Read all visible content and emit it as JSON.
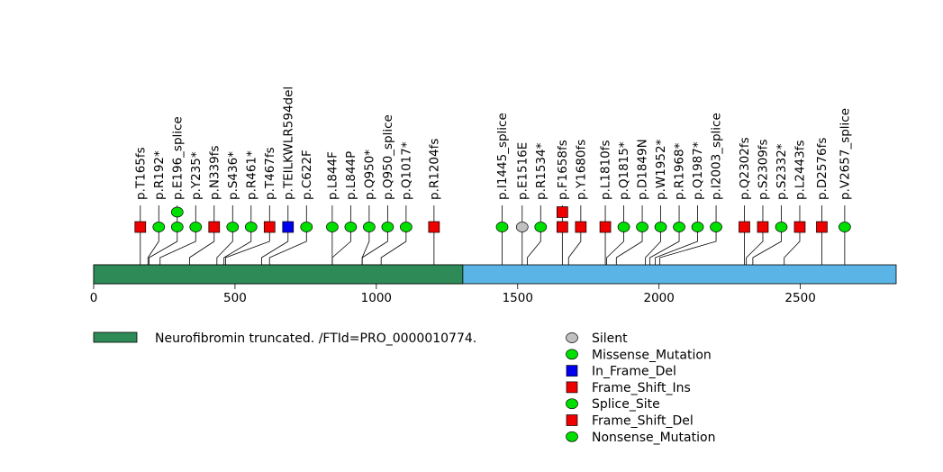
{
  "chart_data": {
    "type": "lollipop",
    "title": "",
    "xlabel": "",
    "ylabel": "",
    "xlim": [
      0,
      2839
    ],
    "xticks": [
      0,
      500,
      1000,
      1500,
      2000,
      2500
    ],
    "protein_length": 2839,
    "colors": {
      "domain": "#2e8b57",
      "backbone": "#5ab4e5",
      "Silent": "#c0c0c0",
      "Missense_Mutation": "#00e000",
      "In_Frame_Del": "#0000ee",
      "Frame_Shift_Ins": "#ee0000",
      "Splice_Site": "#00e000",
      "Frame_Shift_Del": "#ee0000",
      "Nonsense_Mutation": "#00e000"
    },
    "domains": [
      {
        "name": "Neurofibromin truncated. /FTId=PRO_0000010774.",
        "start": 1,
        "end": 1306
      }
    ],
    "mutations": [
      {
        "label": "p.T165fs",
        "pos": 165,
        "stack": [
          {
            "type": "Frame_Shift_Del",
            "count": 1
          }
        ]
      },
      {
        "label": "p.R192*",
        "pos": 192,
        "stack": [
          {
            "type": "Nonsense_Mutation",
            "count": 1
          }
        ]
      },
      {
        "label": "p.E196_splice",
        "pos": 196,
        "stack": [
          {
            "type": "Splice_Site",
            "count": 2
          }
        ]
      },
      {
        "label": "p.Y235*",
        "pos": 235,
        "stack": [
          {
            "type": "Nonsense_Mutation",
            "count": 1
          }
        ]
      },
      {
        "label": "p.N339fs",
        "pos": 339,
        "stack": [
          {
            "type": "Frame_Shift_Ins",
            "count": 1
          }
        ]
      },
      {
        "label": "p.S436*",
        "pos": 436,
        "stack": [
          {
            "type": "Nonsense_Mutation",
            "count": 1
          }
        ]
      },
      {
        "label": "p.R461*",
        "pos": 461,
        "stack": [
          {
            "type": "Nonsense_Mutation",
            "count": 1
          }
        ]
      },
      {
        "label": "p.T467fs",
        "pos": 467,
        "stack": [
          {
            "type": "Frame_Shift_Del",
            "count": 1
          }
        ]
      },
      {
        "label": "p.TEILKWLR594del",
        "pos": 594,
        "stack": [
          {
            "type": "In_Frame_Del",
            "count": 1
          }
        ]
      },
      {
        "label": "p.C622F",
        "pos": 622,
        "stack": [
          {
            "type": "Missense_Mutation",
            "count": 1
          }
        ]
      },
      {
        "label": "p.L844F",
        "pos": 844,
        "stack": [
          {
            "type": "Missense_Mutation",
            "count": 1
          }
        ]
      },
      {
        "label": "p.L844P",
        "pos": 844,
        "stack": [
          {
            "type": "Missense_Mutation",
            "count": 1
          }
        ]
      },
      {
        "label": "p.Q950*",
        "pos": 950,
        "stack": [
          {
            "type": "Nonsense_Mutation",
            "count": 1
          }
        ]
      },
      {
        "label": "p.Q950_splice",
        "pos": 950,
        "stack": [
          {
            "type": "Splice_Site",
            "count": 1
          }
        ]
      },
      {
        "label": "p.Q1017*",
        "pos": 1017,
        "stack": [
          {
            "type": "Nonsense_Mutation",
            "count": 1
          }
        ]
      },
      {
        "label": "p.R1204fs",
        "pos": 1204,
        "stack": [
          {
            "type": "Frame_Shift_Del",
            "count": 1
          }
        ]
      },
      {
        "label": "p.I1445_splice",
        "pos": 1445,
        "stack": [
          {
            "type": "Splice_Site",
            "count": 1
          }
        ]
      },
      {
        "label": "p.E1516E",
        "pos": 1516,
        "stack": [
          {
            "type": "Silent",
            "count": 1
          }
        ]
      },
      {
        "label": "p.R1534*",
        "pos": 1534,
        "stack": [
          {
            "type": "Nonsense_Mutation",
            "count": 1
          }
        ]
      },
      {
        "label": "p.F1658fs",
        "pos": 1658,
        "stack": [
          {
            "type": "Frame_Shift_Ins",
            "count": 2
          }
        ]
      },
      {
        "label": "p.Y1680fs",
        "pos": 1680,
        "stack": [
          {
            "type": "Frame_Shift_Del",
            "count": 1
          }
        ]
      },
      {
        "label": "p.L1810fs",
        "pos": 1810,
        "stack": [
          {
            "type": "Frame_Shift_Del",
            "count": 1
          }
        ]
      },
      {
        "label": "p.Q1815*",
        "pos": 1815,
        "stack": [
          {
            "type": "Nonsense_Mutation",
            "count": 1
          }
        ]
      },
      {
        "label": "p.D1849N",
        "pos": 1849,
        "stack": [
          {
            "type": "Missense_Mutation",
            "count": 1
          }
        ]
      },
      {
        "label": "p.W1952*",
        "pos": 1952,
        "stack": [
          {
            "type": "Nonsense_Mutation",
            "count": 1
          }
        ]
      },
      {
        "label": "p.R1968*",
        "pos": 1968,
        "stack": [
          {
            "type": "Nonsense_Mutation",
            "count": 1
          }
        ]
      },
      {
        "label": "p.Q1987*",
        "pos": 1987,
        "stack": [
          {
            "type": "Nonsense_Mutation",
            "count": 1
          }
        ]
      },
      {
        "label": "p.I2003_splice",
        "pos": 2003,
        "stack": [
          {
            "type": "Splice_Site",
            "count": 1
          }
        ]
      },
      {
        "label": "p.Q2302fs",
        "pos": 2302,
        "stack": [
          {
            "type": "Frame_Shift_Del",
            "count": 1
          }
        ]
      },
      {
        "label": "p.S2309fs",
        "pos": 2309,
        "stack": [
          {
            "type": "Frame_Shift_Del",
            "count": 1
          }
        ]
      },
      {
        "label": "p.S2332*",
        "pos": 2332,
        "stack": [
          {
            "type": "Nonsense_Mutation",
            "count": 1
          }
        ]
      },
      {
        "label": "p.L2443fs",
        "pos": 2443,
        "stack": [
          {
            "type": "Frame_Shift_Del",
            "count": 1
          }
        ]
      },
      {
        "label": "p.D2576fs",
        "pos": 2576,
        "stack": [
          {
            "type": "Frame_Shift_Del",
            "count": 1
          }
        ]
      },
      {
        "label": "p.V2657_splice",
        "pos": 2657,
        "stack": [
          {
            "type": "Splice_Site",
            "count": 1
          }
        ]
      }
    ],
    "legend": {
      "domain_entries": [
        "Neurofibromin truncated. /FTId=PRO_0000010774."
      ],
      "type_entries": [
        {
          "name": "Silent",
          "shape": "circle"
        },
        {
          "name": "Missense_Mutation",
          "shape": "circle"
        },
        {
          "name": "In_Frame_Del",
          "shape": "square"
        },
        {
          "name": "Frame_Shift_Ins",
          "shape": "square"
        },
        {
          "name": "Splice_Site",
          "shape": "circle"
        },
        {
          "name": "Frame_Shift_Del",
          "shape": "square"
        },
        {
          "name": "Nonsense_Mutation",
          "shape": "circle"
        }
      ]
    }
  }
}
